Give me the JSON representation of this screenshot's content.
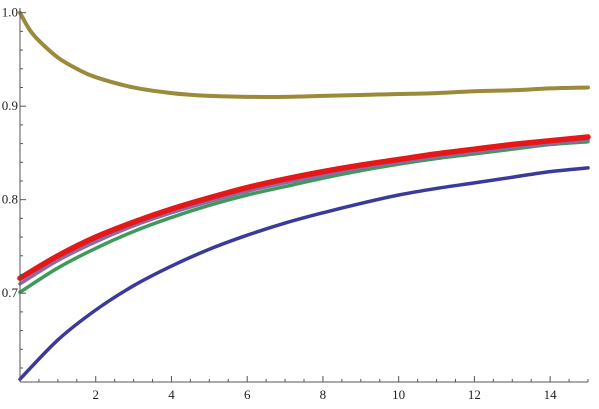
{
  "chart_data": {
    "type": "line",
    "title": "",
    "xlabel": "",
    "ylabel": "",
    "xlim": [
      0,
      15
    ],
    "ylim": [
      0.605,
      1.005
    ],
    "grid": false,
    "x_ticks_major": [
      2,
      4,
      6,
      8,
      10,
      12,
      14
    ],
    "x_tick_labels": [
      "2",
      "4",
      "6",
      "8",
      "10",
      "12",
      "14"
    ],
    "y_ticks_major": [
      0.7,
      0.8,
      0.9,
      1.0
    ],
    "y_tick_labels": [
      "0.7",
      "0.8",
      "0.9",
      "1.0"
    ],
    "series": [
      {
        "color": "#9a8a3a",
        "x": [
          0,
          0.25,
          0.5,
          1,
          1.5,
          2,
          3,
          4,
          5,
          6,
          7,
          8,
          9,
          10,
          11,
          12,
          13,
          14,
          15
        ],
        "y": [
          1.0,
          0.982,
          0.97,
          0.952,
          0.94,
          0.931,
          0.92,
          0.914,
          0.911,
          0.91,
          0.91,
          0.911,
          0.912,
          0.913,
          0.914,
          0.916,
          0.917,
          0.919,
          0.92
        ]
      },
      {
        "color": "#e51717",
        "x": [
          0,
          1,
          2,
          3,
          4,
          5,
          6,
          7,
          8,
          9,
          10,
          11,
          12,
          13,
          14,
          15
        ],
        "y": [
          0.716,
          0.74,
          0.76,
          0.776,
          0.79,
          0.802,
          0.813,
          0.822,
          0.83,
          0.837,
          0.843,
          0.849,
          0.854,
          0.859,
          0.863,
          0.867
        ]
      },
      {
        "color": "#8a6aa8",
        "x": [
          0,
          1,
          2,
          3,
          4,
          5,
          6,
          7,
          8,
          9,
          10,
          11,
          12,
          13,
          14,
          15
        ],
        "y": [
          0.71,
          0.735,
          0.755,
          0.772,
          0.786,
          0.798,
          0.809,
          0.818,
          0.826,
          0.834,
          0.84,
          0.846,
          0.851,
          0.856,
          0.86,
          0.864
        ]
      },
      {
        "color": "#3f9a5a",
        "x": [
          0,
          1,
          2,
          3,
          4,
          5,
          6,
          7,
          8,
          9,
          10,
          11,
          12,
          13,
          14,
          15
        ],
        "y": [
          0.701,
          0.727,
          0.748,
          0.766,
          0.781,
          0.794,
          0.805,
          0.814,
          0.823,
          0.831,
          0.838,
          0.844,
          0.849,
          0.854,
          0.859,
          0.862
        ]
      },
      {
        "color": "#3a3a9a",
        "x": [
          0,
          1,
          2,
          3,
          4,
          5,
          6,
          7,
          8,
          9,
          10,
          11,
          12,
          13,
          14,
          15
        ],
        "y": [
          0.608,
          0.65,
          0.682,
          0.708,
          0.729,
          0.747,
          0.762,
          0.775,
          0.786,
          0.796,
          0.805,
          0.812,
          0.818,
          0.824,
          0.83,
          0.834
        ]
      }
    ]
  }
}
